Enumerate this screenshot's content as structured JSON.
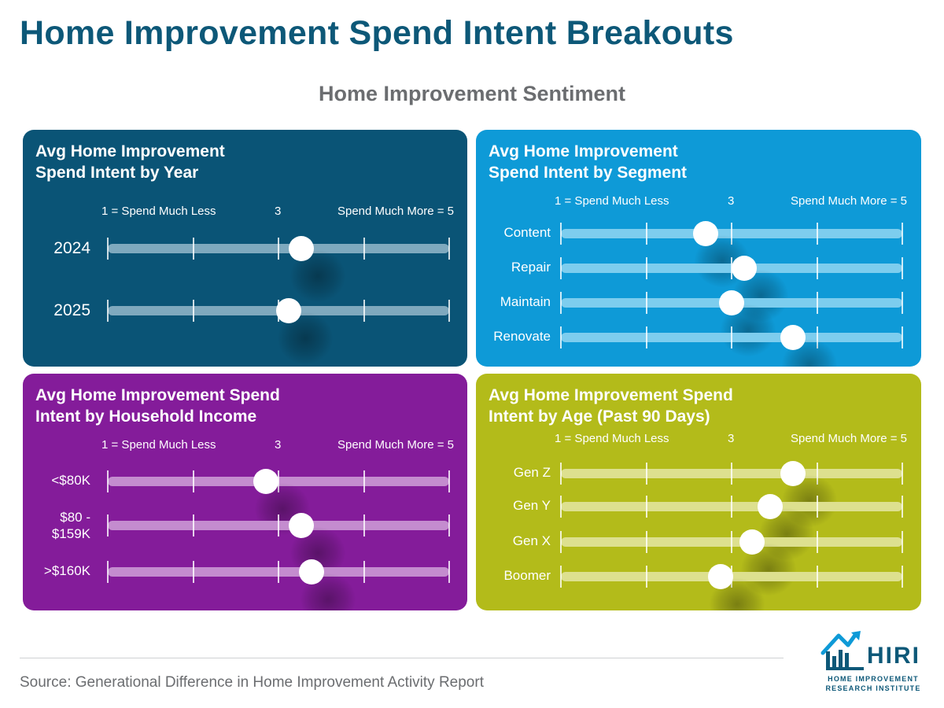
{
  "page": {
    "title": "Home Improvement Spend Intent Breakouts",
    "subtitle": "Home Improvement Sentiment",
    "source": "Source: Generational Difference in Home Improvement Activity Report"
  },
  "logo": {
    "word": "HIRI",
    "line1": "HOME IMPROVEMENT",
    "line2": "RESEARCH INSTITUTE"
  },
  "colors": {
    "title": "#0d5878",
    "panel_year": "#0a5476",
    "panel_segment": "#0e9ad7",
    "panel_income": "#841c9a",
    "panel_age": "#b3bb1a"
  },
  "chart_data": [
    {
      "type": "dot-scale",
      "title": "Avg Home Improvement Spend Intent by Year",
      "scale": {
        "min": 1,
        "max": 5,
        "ticks": [
          1,
          2,
          3,
          4,
          5
        ],
        "label_low": "1 = Spend Much Less",
        "label_mid": "3",
        "label_high": "Spend Much More = 5"
      },
      "categories": [
        "2024",
        "2025"
      ],
      "values": [
        3.27,
        3.12
      ]
    },
    {
      "type": "dot-scale",
      "title": "Avg Home Improvement Spend Intent by Segment",
      "scale": {
        "min": 1,
        "max": 5,
        "ticks": [
          1,
          2,
          3,
          4,
          5
        ],
        "label_low": "1 = Spend Much Less",
        "label_mid": "3",
        "label_high": "Spend Much More = 5"
      },
      "categories": [
        "Content",
        "Repair",
        "Maintain",
        "Renovate"
      ],
      "values": [
        2.7,
        3.15,
        3.0,
        3.72
      ]
    },
    {
      "type": "dot-scale",
      "title": "Avg Home Improvement Spend Intent by Household Income",
      "scale": {
        "min": 1,
        "max": 5,
        "ticks": [
          1,
          2,
          3,
          4,
          5
        ],
        "label_low": "1 = Spend Much Less",
        "label_mid": "3",
        "label_high": "Spend Much More = 5"
      },
      "categories": [
        "<$80K",
        "$80 - $159K",
        ">$160K"
      ],
      "values": [
        2.85,
        3.27,
        3.39
      ]
    },
    {
      "type": "dot-scale",
      "title": "Avg Home Improvement Spend Intent by Age (Past 90 Days)",
      "scale": {
        "min": 1,
        "max": 5,
        "ticks": [
          1,
          2,
          3,
          4,
          5
        ],
        "label_low": "1 = Spend Much Less",
        "label_mid": "3",
        "label_high": "Spend Much More = 5"
      },
      "categories": [
        "Gen Z",
        "Gen Y",
        "Gen X",
        "Boomer"
      ],
      "values": [
        3.72,
        3.45,
        3.24,
        2.87
      ]
    }
  ]
}
